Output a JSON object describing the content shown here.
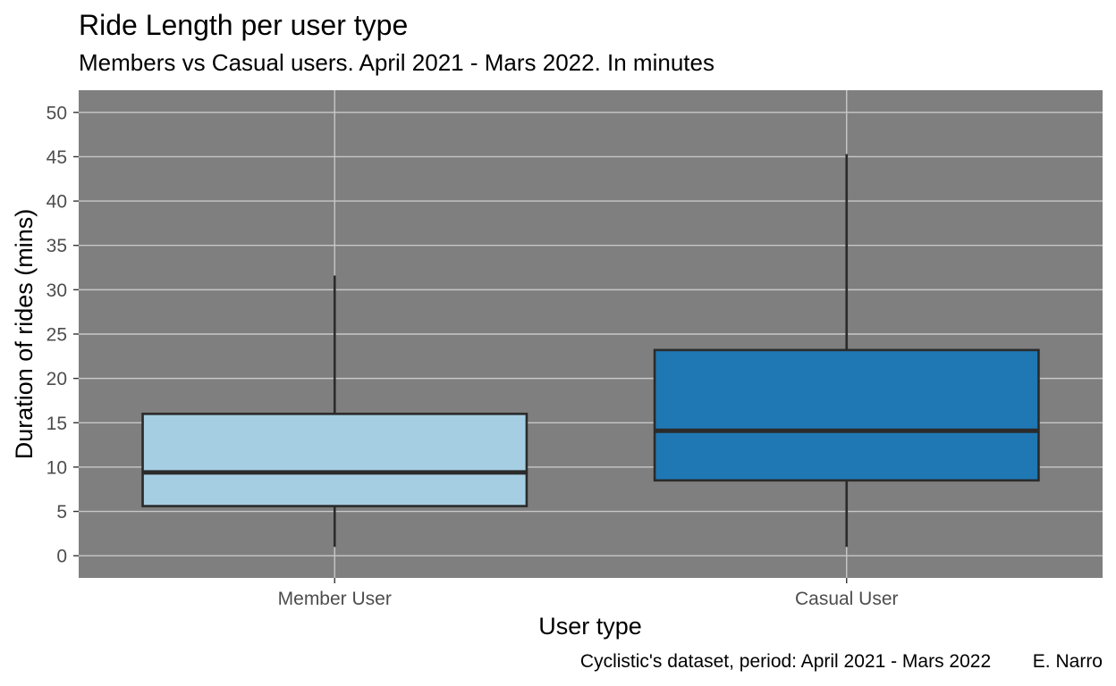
{
  "chart_data": {
    "type": "boxplot",
    "title": "Ride Length per user type",
    "subtitle": "Members vs Casual users. April 2021 - Mars 2022. In minutes",
    "xlabel": "User type",
    "ylabel": "Duration of rides (mins)",
    "ylim": [
      -2.5,
      52.5
    ],
    "yticks": [
      0,
      5,
      10,
      15,
      20,
      25,
      30,
      35,
      40,
      45,
      50
    ],
    "grid": true,
    "legend": "none",
    "panel_background": "#7f7f7f",
    "grid_color": "#c8c8c8",
    "box_outline_color": "#2b2b2b",
    "categories": [
      "Member User",
      "Casual User"
    ],
    "boxes": [
      {
        "label": "Member User",
        "min": 1,
        "q1": 5.6,
        "median": 9.4,
        "q3": 16.0,
        "max": 31.6,
        "color": "#a6cee3"
      },
      {
        "label": "Casual User",
        "min": 1,
        "q1": 8.5,
        "median": 14.1,
        "q3": 23.2,
        "max": 45.3,
        "color": "#1f78b4"
      }
    ],
    "caption": "Cyclistic's dataset, period: April 2021 - Mars 2022        E. Narro"
  }
}
